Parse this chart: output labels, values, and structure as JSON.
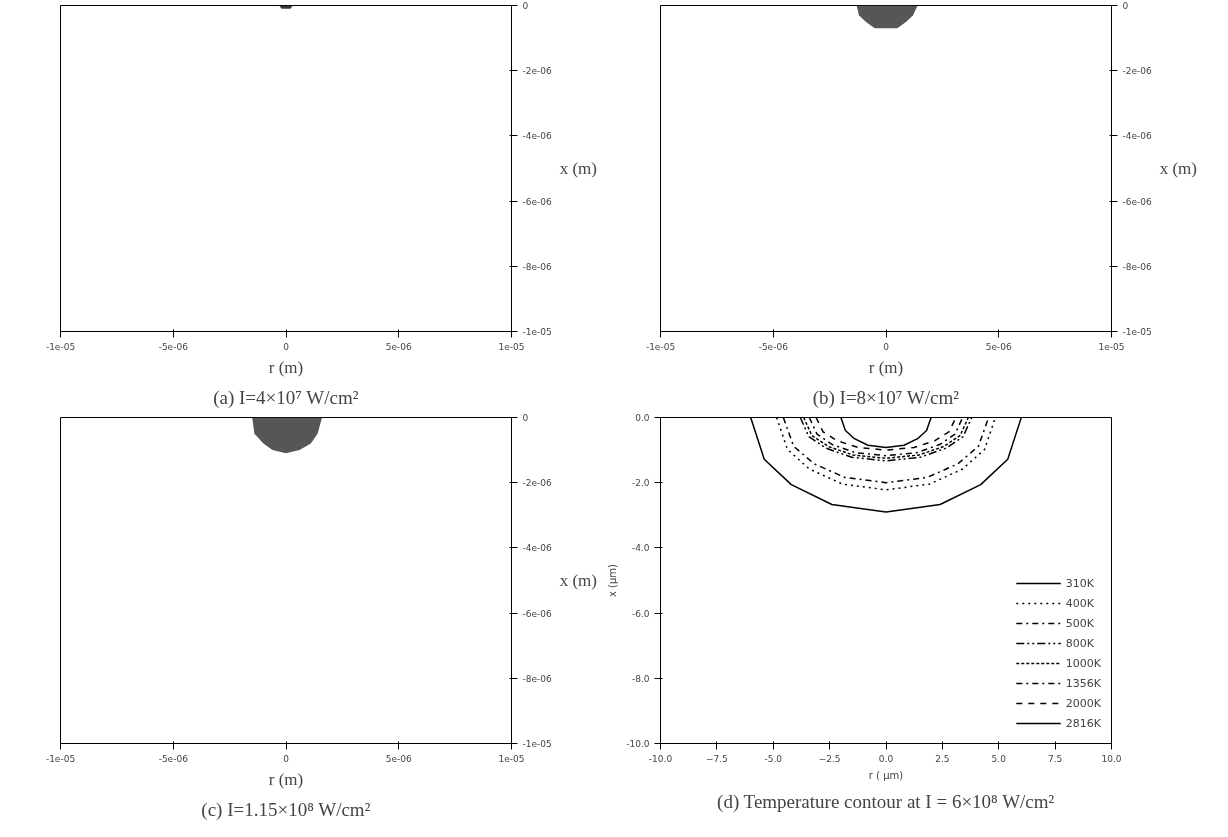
{
  "chart_data": [
    {
      "type": "area",
      "title": "(a) I=4×10⁷ W/cm²",
      "xlabel": "r (m)",
      "ylabel": "x (m)",
      "xlim": [
        -1e-05,
        1e-05
      ],
      "ylim": [
        -1e-05,
        0
      ],
      "xticks": [
        {
          "value": -1e-05,
          "label": "-1e-05"
        },
        {
          "value": -5e-06,
          "label": "-5e-06"
        },
        {
          "value": 0,
          "label": "0"
        },
        {
          "value": 5e-06,
          "label": "5e-06"
        },
        {
          "value": 1e-05,
          "label": "1e-05"
        }
      ],
      "yticks": [
        {
          "value": 0,
          "label": "0"
        },
        {
          "value": -2e-06,
          "label": "-2e-06"
        },
        {
          "value": -4e-06,
          "label": "-4e-06"
        },
        {
          "value": -6e-06,
          "label": "-6e-06"
        },
        {
          "value": -8e-06,
          "label": "-8e-06"
        },
        {
          "value": -1e-05,
          "label": "-1e-05"
        }
      ],
      "series": [
        {
          "color": "#222222",
          "x": [
            -3e-07,
            -2e-07,
            0,
            2e-07,
            3e-07
          ],
          "values": [
            0,
            -1e-07,
            -1e-07,
            -1e-07,
            0
          ]
        }
      ]
    },
    {
      "type": "area",
      "title": "(b) I=8×10⁷ W/cm²",
      "xlabel": "r (m)",
      "ylabel": "x (m)",
      "xlim": [
        -1e-05,
        1e-05
      ],
      "ylim": [
        -1e-05,
        0
      ],
      "xticks": [
        {
          "value": -1e-05,
          "label": "-1e-05"
        },
        {
          "value": -5e-06,
          "label": "-5e-06"
        },
        {
          "value": 0,
          "label": "0"
        },
        {
          "value": 5e-06,
          "label": "5e-06"
        },
        {
          "value": 1e-05,
          "label": "1e-05"
        }
      ],
      "yticks": [
        {
          "value": 0,
          "label": "0"
        },
        {
          "value": -2e-06,
          "label": "-2e-06"
        },
        {
          "value": -4e-06,
          "label": "-4e-06"
        },
        {
          "value": -6e-06,
          "label": "-6e-06"
        },
        {
          "value": -8e-06,
          "label": "-8e-06"
        },
        {
          "value": -1e-05,
          "label": "-1e-05"
        }
      ],
      "series": [
        {
          "color": "#444444",
          "x": [
            -1.3e-06,
            -1.2e-06,
            -9e-07,
            -5e-07,
            0,
            5e-07,
            9e-07,
            1.2e-06,
            1.4e-06
          ],
          "values": [
            0,
            -3e-07,
            -5e-07,
            -7e-07,
            -7e-07,
            -7e-07,
            -5e-07,
            -3e-07,
            0
          ]
        }
      ]
    },
    {
      "type": "area",
      "title": "(c) I=1.15×10⁸ W/cm²",
      "xlabel": "r (m)",
      "ylabel": "x (m)",
      "xlim": [
        -1e-05,
        1e-05
      ],
      "ylim": [
        -1e-05,
        0
      ],
      "xticks": [
        {
          "value": -1e-05,
          "label": "-1e-05"
        },
        {
          "value": -5e-06,
          "label": "-5e-06"
        },
        {
          "value": 0,
          "label": "0"
        },
        {
          "value": 5e-06,
          "label": "5e-06"
        },
        {
          "value": 1e-05,
          "label": "1e-05"
        }
      ],
      "yticks": [
        {
          "value": 0,
          "label": "0"
        },
        {
          "value": -2e-06,
          "label": "-2e-06"
        },
        {
          "value": -4e-06,
          "label": "-4e-06"
        },
        {
          "value": -6e-06,
          "label": "-6e-06"
        },
        {
          "value": -8e-06,
          "label": "-8e-06"
        },
        {
          "value": -1e-05,
          "label": "-1e-05"
        }
      ],
      "series": [
        {
          "color": "#444444",
          "x": [
            -1.5e-06,
            -1.4e-06,
            -1e-06,
            -6e-07,
            0,
            6e-07,
            1.1e-06,
            1.4e-06,
            1.6e-06
          ],
          "values": [
            0,
            -5e-07,
            -8e-07,
            -1e-06,
            -1.1e-06,
            -1e-06,
            -8e-07,
            -5e-07,
            0
          ]
        }
      ]
    },
    {
      "type": "line",
      "title": "(d) Temperature contour at I = 6×10⁸ W/cm²",
      "xlabel": "r ( μm)",
      "ylabel": "x (μm)",
      "xlim": [
        -10,
        10
      ],
      "ylim": [
        -10,
        0
      ],
      "legend": "bottom right",
      "xticks": [
        {
          "value": -10,
          "label": "-10.0"
        },
        -7.5,
        {
          "value": -5,
          "label": "-5.0"
        },
        -2.5,
        {
          "value": 0,
          "label": "0.0"
        },
        2.5,
        {
          "value": 5,
          "label": "5.0"
        },
        7.5,
        {
          "value": 10,
          "label": "10.0"
        }
      ],
      "yticks": [
        {
          "value": 0,
          "label": "0.0"
        },
        {
          "value": -2,
          "label": "-2.0"
        },
        {
          "value": -4,
          "label": "-4.0"
        },
        {
          "value": -6,
          "label": "-6.0"
        },
        {
          "value": -8,
          "label": "-8.0"
        },
        {
          "value": -10,
          "label": "-10.0"
        }
      ],
      "series": [
        {
          "name": "310K",
          "color": "#000000",
          "line_style": "solid",
          "x": [
            -6,
            -5.4,
            -4.2,
            -2.4,
            0,
            2.4,
            4.2,
            5.4,
            6
          ],
          "values": [
            0,
            -1.28,
            -2.06,
            -2.67,
            -2.9,
            -2.67,
            -2.06,
            -1.28,
            0
          ]
        },
        {
          "name": "400K",
          "color": "#000000",
          "line_style": "dotted",
          "x": [
            -4.85,
            -4.37,
            -3.4,
            -1.94,
            0,
            1.94,
            3.4,
            4.37,
            4.85
          ],
          "values": [
            0,
            -0.98,
            -1.58,
            -2.04,
            -2.22,
            -2.04,
            -1.58,
            -0.98,
            0
          ]
        },
        {
          "name": "500K",
          "color": "#000000",
          "line_style": "dashdot",
          "x": [
            -4.55,
            -4.1,
            -3.19,
            -1.82,
            0,
            1.82,
            3.19,
            4.1,
            4.55
          ],
          "values": [
            0,
            -0.88,
            -1.42,
            -1.84,
            -2.0,
            -1.84,
            -1.42,
            -0.88,
            0
          ]
        },
        {
          "name": "800K",
          "color": "#000000",
          "line_style": "dashdotdot",
          "x": [
            -3.8,
            -3.42,
            -2.66,
            -1.52,
            0,
            1.52,
            2.66,
            3.42,
            3.8
          ],
          "values": [
            0,
            -0.59,
            -0.94,
            -1.22,
            -1.33,
            -1.22,
            -0.94,
            -0.59,
            0
          ]
        },
        {
          "name": "1000K",
          "color": "#000000",
          "line_style": "shortdash",
          "x": [
            -3.65,
            -3.29,
            -2.56,
            -1.46,
            0,
            1.46,
            2.56,
            3.29,
            3.65
          ],
          "values": [
            0,
            -0.55,
            -0.89,
            -1.15,
            -1.25,
            -1.15,
            -0.89,
            -0.55,
            0
          ]
        },
        {
          "name": "1356K",
          "color": "#000000",
          "line_style": "dashdot",
          "x": [
            -3.4,
            -3.06,
            -2.38,
            -1.36,
            0,
            1.36,
            2.38,
            3.06,
            3.4
          ],
          "values": [
            0,
            -0.51,
            -0.83,
            -1.08,
            -1.17,
            -1.08,
            -0.83,
            -0.51,
            0
          ]
        },
        {
          "name": "2000K",
          "color": "#000000",
          "line_style": "dashed",
          "x": [
            -3.1,
            -2.79,
            -2.17,
            -1.24,
            0,
            1.24,
            2.17,
            2.79,
            3.1
          ],
          "values": [
            0,
            -0.44,
            -0.71,
            -0.92,
            -1.0,
            -0.92,
            -0.71,
            -0.44,
            0
          ]
        },
        {
          "name": "2816K",
          "color": "#000000",
          "line_style": "solid",
          "x": [
            -2,
            -1.8,
            -1.4,
            -0.8,
            0,
            0.8,
            1.4,
            1.8,
            2
          ],
          "values": [
            0,
            -0.4,
            -0.65,
            -0.85,
            -0.92,
            -0.85,
            -0.65,
            -0.4,
            0
          ]
        }
      ]
    }
  ]
}
